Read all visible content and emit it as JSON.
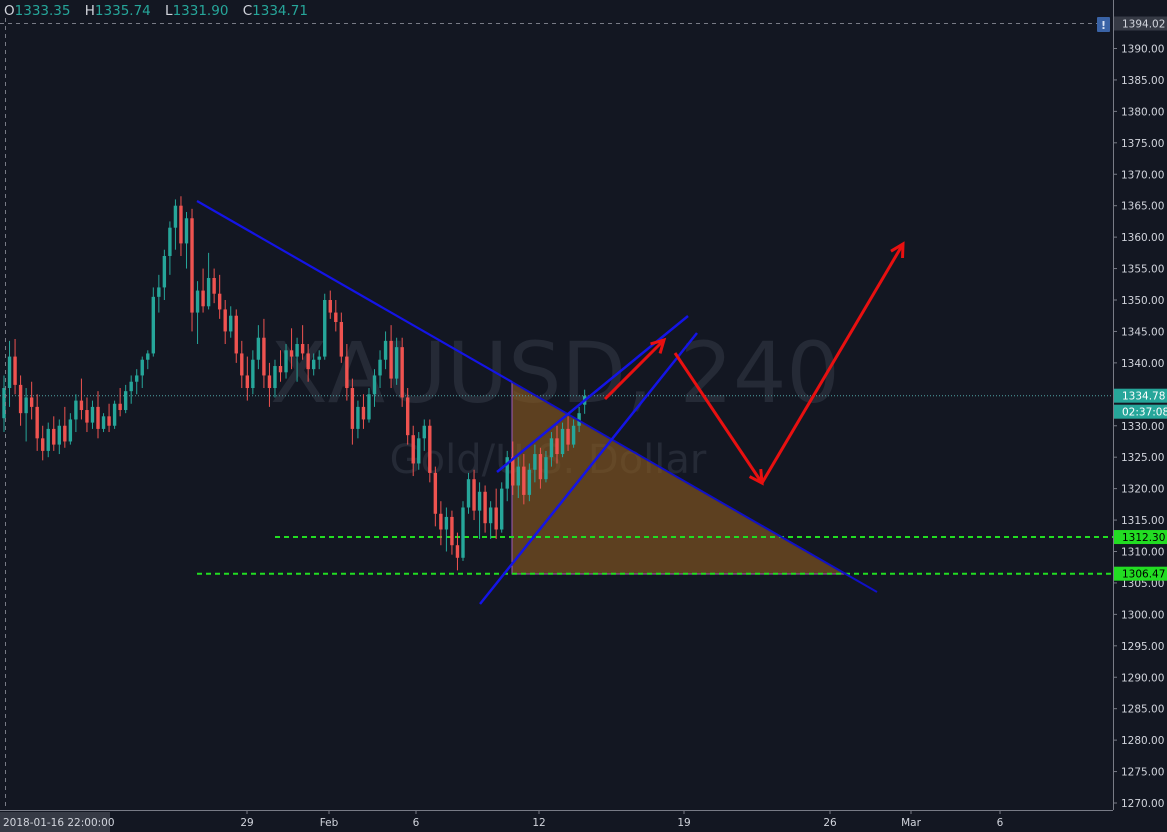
{
  "ohlc": {
    "o_label": "O",
    "o": "1333.35",
    "h_label": "H",
    "h": "1335.74",
    "l_label": "L",
    "l": "1331.90",
    "c_label": "C",
    "c": "1334.71"
  },
  "watermark": {
    "symbol": "XAUUSD, 240",
    "description": "Gold/U.S. Dollar"
  },
  "price_axis": {
    "ticks": [
      "1390.00",
      "1385.00",
      "1380.00",
      "1375.00",
      "1370.00",
      "1365.00",
      "1360.00",
      "1355.00",
      "1350.00",
      "1345.00",
      "1340.00",
      "1335.00",
      "1330.00",
      "1325.00",
      "1320.00",
      "1315.00",
      "1310.00",
      "1305.00",
      "1300.00",
      "1295.00",
      "1290.00",
      "1285.00",
      "1280.00",
      "1275.00",
      "1270.00"
    ],
    "top_value": "1394.02",
    "current_price": "1334.78",
    "countdown": "02:37:08",
    "level_upper": "1312.30",
    "level_lower": "1306.47"
  },
  "time_axis": {
    "cursor_label": "2018-01-16 22:00:00",
    "ticks": [
      "29",
      "Feb",
      "6",
      "12",
      "19",
      "26",
      "Mar",
      "6"
    ]
  },
  "colors": {
    "background": "#131722",
    "bull": "#26a69a",
    "bear": "#ef5350",
    "trendline": "#1414e6",
    "projection_arrow": "#e81010",
    "support_level": "#22dd22",
    "triangle_fill": "#8b5a1e",
    "price_line": "#4fa3a3"
  },
  "chart_data": {
    "type": "candlestick",
    "symbol": "XAUUSD",
    "timeframe": "240",
    "ylim": [
      1268,
      1396
    ],
    "candles": [
      {
        "o": 1331.2,
        "h": 1338.0,
        "l": 1329.0,
        "c": 1336.0
      },
      {
        "o": 1336.0,
        "h": 1343.5,
        "l": 1333.0,
        "c": 1341.0
      },
      {
        "o": 1341.0,
        "h": 1343.8,
        "l": 1335.0,
        "c": 1336.5
      },
      {
        "o": 1336.5,
        "h": 1338.0,
        "l": 1330.0,
        "c": 1332.0
      },
      {
        "o": 1332.0,
        "h": 1336.0,
        "l": 1327.5,
        "c": 1334.5
      },
      {
        "o": 1334.5,
        "h": 1337.0,
        "l": 1331.0,
        "c": 1333.0
      },
      {
        "o": 1333.0,
        "h": 1335.0,
        "l": 1326.0,
        "c": 1328.0
      },
      {
        "o": 1328.0,
        "h": 1330.0,
        "l": 1324.5,
        "c": 1326.0
      },
      {
        "o": 1326.0,
        "h": 1330.5,
        "l": 1325.0,
        "c": 1329.5
      },
      {
        "o": 1329.5,
        "h": 1331.5,
        "l": 1326.0,
        "c": 1327.0
      },
      {
        "o": 1327.0,
        "h": 1331.0,
        "l": 1325.5,
        "c": 1330.0
      },
      {
        "o": 1330.0,
        "h": 1333.0,
        "l": 1326.5,
        "c": 1327.5
      },
      {
        "o": 1327.5,
        "h": 1332.0,
        "l": 1327.0,
        "c": 1331.0
      },
      {
        "o": 1331.0,
        "h": 1335.0,
        "l": 1329.0,
        "c": 1334.0
      },
      {
        "o": 1334.0,
        "h": 1337.5,
        "l": 1331.0,
        "c": 1332.5
      },
      {
        "o": 1332.5,
        "h": 1334.5,
        "l": 1329.0,
        "c": 1330.5
      },
      {
        "o": 1330.5,
        "h": 1334.0,
        "l": 1329.5,
        "c": 1333.0
      },
      {
        "o": 1333.0,
        "h": 1335.5,
        "l": 1328.0,
        "c": 1329.5
      },
      {
        "o": 1329.5,
        "h": 1332.0,
        "l": 1329.0,
        "c": 1331.5
      },
      {
        "o": 1331.5,
        "h": 1333.5,
        "l": 1329.0,
        "c": 1330.0
      },
      {
        "o": 1330.0,
        "h": 1334.0,
        "l": 1329.5,
        "c": 1333.5
      },
      {
        "o": 1333.5,
        "h": 1336.0,
        "l": 1331.5,
        "c": 1332.5
      },
      {
        "o": 1332.5,
        "h": 1336.5,
        "l": 1332.0,
        "c": 1335.5
      },
      {
        "o": 1335.5,
        "h": 1338.0,
        "l": 1333.5,
        "c": 1337.0
      },
      {
        "o": 1337.0,
        "h": 1339.0,
        "l": 1335.0,
        "c": 1338.0
      },
      {
        "o": 1338.0,
        "h": 1341.0,
        "l": 1336.0,
        "c": 1340.5
      },
      {
        "o": 1340.5,
        "h": 1342.0,
        "l": 1339.0,
        "c": 1341.5
      },
      {
        "o": 1341.5,
        "h": 1352.0,
        "l": 1341.0,
        "c": 1350.5
      },
      {
        "o": 1350.5,
        "h": 1354.0,
        "l": 1348.0,
        "c": 1352.0
      },
      {
        "o": 1352.0,
        "h": 1358.0,
        "l": 1350.0,
        "c": 1357.0
      },
      {
        "o": 1357.0,
        "h": 1362.5,
        "l": 1354.0,
        "c": 1361.5
      },
      {
        "o": 1361.5,
        "h": 1366.0,
        "l": 1358.0,
        "c": 1365.0
      },
      {
        "o": 1365.0,
        "h": 1366.5,
        "l": 1357.0,
        "c": 1359.0
      },
      {
        "o": 1359.0,
        "h": 1364.0,
        "l": 1355.0,
        "c": 1363.0
      },
      {
        "o": 1363.0,
        "h": 1364.5,
        "l": 1345.0,
        "c": 1348.0
      },
      {
        "o": 1348.0,
        "h": 1353.0,
        "l": 1343.0,
        "c": 1351.5
      },
      {
        "o": 1351.5,
        "h": 1355.0,
        "l": 1348.0,
        "c": 1349.0
      },
      {
        "o": 1349.0,
        "h": 1357.5,
        "l": 1348.5,
        "c": 1353.5
      },
      {
        "o": 1353.5,
        "h": 1355.0,
        "l": 1349.5,
        "c": 1351.0
      },
      {
        "o": 1351.0,
        "h": 1354.0,
        "l": 1347.0,
        "c": 1348.5
      },
      {
        "o": 1348.5,
        "h": 1350.0,
        "l": 1343.0,
        "c": 1345.0
      },
      {
        "o": 1345.0,
        "h": 1349.0,
        "l": 1344.0,
        "c": 1347.5
      },
      {
        "o": 1347.5,
        "h": 1348.5,
        "l": 1340.0,
        "c": 1341.5
      },
      {
        "o": 1341.5,
        "h": 1343.5,
        "l": 1336.0,
        "c": 1338.0
      },
      {
        "o": 1338.0,
        "h": 1341.0,
        "l": 1334.0,
        "c": 1336.0
      },
      {
        "o": 1336.0,
        "h": 1342.0,
        "l": 1335.0,
        "c": 1340.5
      },
      {
        "o": 1340.5,
        "h": 1346.0,
        "l": 1339.0,
        "c": 1344.0
      },
      {
        "o": 1344.0,
        "h": 1347.0,
        "l": 1336.0,
        "c": 1338.0
      },
      {
        "o": 1338.0,
        "h": 1340.0,
        "l": 1333.0,
        "c": 1336.0
      },
      {
        "o": 1336.0,
        "h": 1340.5,
        "l": 1334.5,
        "c": 1339.5
      },
      {
        "o": 1339.5,
        "h": 1342.0,
        "l": 1337.0,
        "c": 1338.5
      },
      {
        "o": 1338.5,
        "h": 1343.0,
        "l": 1337.5,
        "c": 1342.0
      },
      {
        "o": 1342.0,
        "h": 1345.5,
        "l": 1339.0,
        "c": 1341.0
      },
      {
        "o": 1341.0,
        "h": 1344.0,
        "l": 1337.0,
        "c": 1343.0
      },
      {
        "o": 1343.0,
        "h": 1346.0,
        "l": 1340.5,
        "c": 1341.5
      },
      {
        "o": 1341.5,
        "h": 1343.0,
        "l": 1337.0,
        "c": 1339.0
      },
      {
        "o": 1339.0,
        "h": 1341.5,
        "l": 1338.0,
        "c": 1340.5
      },
      {
        "o": 1340.5,
        "h": 1342.0,
        "l": 1339.0,
        "c": 1341.0
      },
      {
        "o": 1341.0,
        "h": 1351.0,
        "l": 1340.5,
        "c": 1350.0
      },
      {
        "o": 1350.0,
        "h": 1351.5,
        "l": 1347.0,
        "c": 1348.0
      },
      {
        "o": 1348.0,
        "h": 1350.0,
        "l": 1345.0,
        "c": 1346.5
      },
      {
        "o": 1346.5,
        "h": 1348.0,
        "l": 1340.0,
        "c": 1341.0
      },
      {
        "o": 1341.0,
        "h": 1343.0,
        "l": 1334.0,
        "c": 1336.0
      },
      {
        "o": 1336.0,
        "h": 1337.5,
        "l": 1327.0,
        "c": 1329.5
      },
      {
        "o": 1329.5,
        "h": 1334.0,
        "l": 1328.0,
        "c": 1333.0
      },
      {
        "o": 1333.0,
        "h": 1335.0,
        "l": 1329.5,
        "c": 1331.0
      },
      {
        "o": 1331.0,
        "h": 1336.0,
        "l": 1330.5,
        "c": 1335.0
      },
      {
        "o": 1335.0,
        "h": 1339.0,
        "l": 1333.0,
        "c": 1338.0
      },
      {
        "o": 1338.0,
        "h": 1342.0,
        "l": 1336.0,
        "c": 1340.5
      },
      {
        "o": 1340.5,
        "h": 1345.0,
        "l": 1339.0,
        "c": 1343.5
      },
      {
        "o": 1343.5,
        "h": 1346.0,
        "l": 1336.0,
        "c": 1337.5
      },
      {
        "o": 1337.5,
        "h": 1344.0,
        "l": 1336.5,
        "c": 1342.5
      },
      {
        "o": 1342.5,
        "h": 1344.0,
        "l": 1333.0,
        "c": 1334.5
      },
      {
        "o": 1334.5,
        "h": 1336.0,
        "l": 1327.0,
        "c": 1328.5
      },
      {
        "o": 1328.5,
        "h": 1330.0,
        "l": 1322.0,
        "c": 1324.0
      },
      {
        "o": 1324.0,
        "h": 1329.0,
        "l": 1323.0,
        "c": 1328.0
      },
      {
        "o": 1328.0,
        "h": 1331.0,
        "l": 1326.0,
        "c": 1330.0
      },
      {
        "o": 1330.0,
        "h": 1331.0,
        "l": 1321.0,
        "c": 1322.5
      },
      {
        "o": 1322.5,
        "h": 1323.5,
        "l": 1314.0,
        "c": 1316.0
      },
      {
        "o": 1316.0,
        "h": 1318.0,
        "l": 1311.0,
        "c": 1313.5
      },
      {
        "o": 1313.5,
        "h": 1317.0,
        "l": 1310.0,
        "c": 1315.5
      },
      {
        "o": 1315.5,
        "h": 1316.5,
        "l": 1309.5,
        "c": 1311.0
      },
      {
        "o": 1311.0,
        "h": 1313.0,
        "l": 1307.0,
        "c": 1309.0
      },
      {
        "o": 1309.0,
        "h": 1318.0,
        "l": 1308.5,
        "c": 1317.0
      },
      {
        "o": 1317.0,
        "h": 1322.5,
        "l": 1316.0,
        "c": 1321.5
      },
      {
        "o": 1321.5,
        "h": 1323.0,
        "l": 1315.0,
        "c": 1316.5
      },
      {
        "o": 1316.5,
        "h": 1321.0,
        "l": 1312.0,
        "c": 1319.5
      },
      {
        "o": 1319.5,
        "h": 1320.5,
        "l": 1313.0,
        "c": 1314.5
      },
      {
        "o": 1314.5,
        "h": 1318.0,
        "l": 1312.0,
        "c": 1317.0
      },
      {
        "o": 1317.0,
        "h": 1320.0,
        "l": 1312.0,
        "c": 1313.5
      },
      {
        "o": 1313.5,
        "h": 1321.0,
        "l": 1313.0,
        "c": 1320.0
      },
      {
        "o": 1320.0,
        "h": 1326.0,
        "l": 1318.0,
        "c": 1325.0
      },
      {
        "o": 1325.0,
        "h": 1327.5,
        "l": 1319.0,
        "c": 1320.5
      },
      {
        "o": 1320.5,
        "h": 1325.0,
        "l": 1318.5,
        "c": 1323.5
      },
      {
        "o": 1323.5,
        "h": 1325.5,
        "l": 1317.5,
        "c": 1319.0
      },
      {
        "o": 1319.0,
        "h": 1324.0,
        "l": 1318.0,
        "c": 1323.0
      },
      {
        "o": 1323.0,
        "h": 1327.0,
        "l": 1321.0,
        "c": 1325.5
      },
      {
        "o": 1325.5,
        "h": 1326.5,
        "l": 1320.0,
        "c": 1321.5
      },
      {
        "o": 1321.5,
        "h": 1326.0,
        "l": 1321.0,
        "c": 1325.0
      },
      {
        "o": 1325.0,
        "h": 1329.0,
        "l": 1323.5,
        "c": 1328.0
      },
      {
        "o": 1328.0,
        "h": 1330.0,
        "l": 1324.0,
        "c": 1325.5
      },
      {
        "o": 1325.5,
        "h": 1330.5,
        "l": 1325.0,
        "c": 1329.5
      },
      {
        "o": 1329.5,
        "h": 1331.5,
        "l": 1326.0,
        "c": 1327.0
      },
      {
        "o": 1327.0,
        "h": 1331.0,
        "l": 1326.5,
        "c": 1330.0
      },
      {
        "o": 1330.0,
        "h": 1333.0,
        "l": 1329.0,
        "c": 1332.0
      },
      {
        "o": 1333.35,
        "h": 1335.74,
        "l": 1331.9,
        "c": 1334.71
      }
    ],
    "horizontal_levels": [
      1312.3,
      1306.47
    ],
    "price_line": 1334.78
  }
}
